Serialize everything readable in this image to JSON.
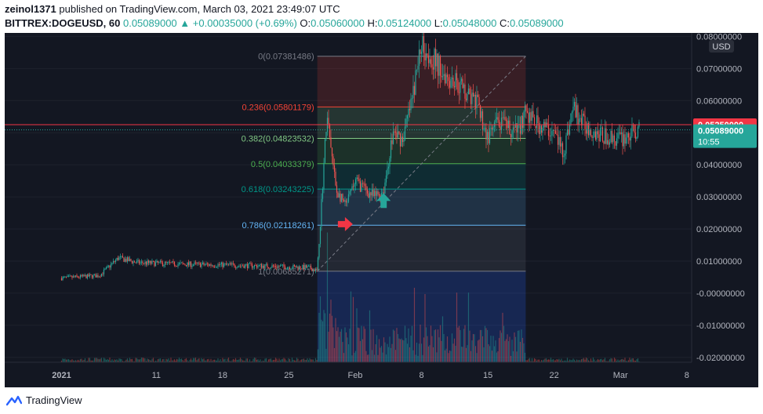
{
  "header": {
    "author": "zeinol1371",
    "published_text": "published on TradingView.com, March 03, 2021 23:49:07 UTC",
    "symbol": "BITTREX:DOGEUSD, 60",
    "last_price": "0.05089000",
    "change": "+0.00035000 (+0.69%)",
    "o_label": "O:",
    "o_value": "0.05060000",
    "h_label": "H:",
    "h_value": "0.05124000",
    "l_label": "L:",
    "l_value": "0.05048000",
    "c_label": "C:",
    "c_value": "0.05089000"
  },
  "colors": {
    "background": "#131722",
    "up": "#26a69a",
    "down": "#ef5350",
    "fib_0": "#787b86",
    "fib_0236": "#f44336",
    "fib_0382": "#81c784",
    "fib_05": "#4caf50",
    "fib_0618": "#009688",
    "fib_0786": "#64b5f6",
    "fib_1": "#787b86",
    "price_line": "#f23645",
    "current_label": "#26a69a"
  },
  "chart_data": {
    "type": "candlestick",
    "title": "",
    "xlabel": "",
    "ylabel": "",
    "ylim": [
      -0.021,
      0.081
    ],
    "y_axis_unit": "USD",
    "y_ticks": [
      "0.08000000",
      "0.07000000",
      "0.06000000",
      "0.05000000",
      "0.04000000",
      "0.03000000",
      "0.02000000",
      "0.01000000",
      "-0.00000000",
      "-0.01000000",
      "-0.02000000"
    ],
    "x_ticks": [
      "2021",
      "11",
      "18",
      "25",
      "Feb",
      "8",
      "15",
      "22",
      "Mar",
      "8"
    ],
    "price_path": [
      {
        "x": "2021-01-01",
        "y": 0.0047
      },
      {
        "x": "2021-01-05",
        "y": 0.0055
      },
      {
        "x": "2021-01-07",
        "y": 0.011
      },
      {
        "x": "2021-01-09",
        "y": 0.0095
      },
      {
        "x": "2021-01-14",
        "y": 0.009
      },
      {
        "x": "2021-01-18",
        "y": 0.0088
      },
      {
        "x": "2021-01-22",
        "y": 0.0085
      },
      {
        "x": "2021-01-27",
        "y": 0.008
      },
      {
        "x": "2021-01-28",
        "y": 0.007
      },
      {
        "x": "2021-01-29",
        "y": 0.055
      },
      {
        "x": "2021-01-30",
        "y": 0.032
      },
      {
        "x": "2021-01-31",
        "y": 0.027
      },
      {
        "x": "2021-02-01",
        "y": 0.035
      },
      {
        "x": "2021-02-03",
        "y": 0.03
      },
      {
        "x": "2021-02-04",
        "y": 0.032
      },
      {
        "x": "2021-02-05",
        "y": 0.05
      },
      {
        "x": "2021-02-06",
        "y": 0.048
      },
      {
        "x": "2021-02-07",
        "y": 0.06
      },
      {
        "x": "2021-02-08",
        "y": 0.078
      },
      {
        "x": "2021-02-09",
        "y": 0.074
      },
      {
        "x": "2021-02-10",
        "y": 0.07
      },
      {
        "x": "2021-02-12",
        "y": 0.065
      },
      {
        "x": "2021-02-14",
        "y": 0.058
      },
      {
        "x": "2021-02-15",
        "y": 0.048
      },
      {
        "x": "2021-02-16",
        "y": 0.053
      },
      {
        "x": "2021-02-18",
        "y": 0.05
      },
      {
        "x": "2021-02-19",
        "y": 0.056
      },
      {
        "x": "2021-02-20",
        "y": 0.053
      },
      {
        "x": "2021-02-22",
        "y": 0.05
      },
      {
        "x": "2021-02-23",
        "y": 0.044
      },
      {
        "x": "2021-02-24",
        "y": 0.058
      },
      {
        "x": "2021-02-25",
        "y": 0.053
      },
      {
        "x": "2021-02-27",
        "y": 0.049
      },
      {
        "x": "2021-03-01",
        "y": 0.048
      },
      {
        "x": "2021-03-03",
        "y": 0.0509
      }
    ],
    "fibonacci": {
      "start": "2021-01-28",
      "end": "2021-02-19",
      "levels": [
        {
          "label": "0(0.07381486)",
          "ratio": 0,
          "price": 0.07381486
        },
        {
          "label": "0.236(0.05801179)",
          "ratio": 0.236,
          "price": 0.05801179
        },
        {
          "label": "0.382(0.04823532)",
          "ratio": 0.382,
          "price": 0.04823532
        },
        {
          "label": "0.5(0.04033379)",
          "ratio": 0.5,
          "price": 0.04033379
        },
        {
          "label": "0.618(0.03243225)",
          "ratio": 0.618,
          "price": 0.03243225
        },
        {
          "label": "0.786(0.02118261)",
          "ratio": 0.786,
          "price": 0.02118261
        },
        {
          "label": "1(0.00685271)",
          "ratio": 1,
          "price": 0.00685271
        }
      ]
    },
    "horizontal_line": {
      "price": 0.0525,
      "label": "0.05250000"
    },
    "current_price": {
      "price": 0.05089,
      "label": "0.05089000",
      "countdown": "10:55"
    },
    "arrows": [
      {
        "type": "right",
        "x": "2021-01-31",
        "y": 0.0215,
        "color": "#f23645"
      },
      {
        "type": "up",
        "x": "2021-02-04",
        "y": 0.029,
        "color": "#26a69a"
      }
    ]
  },
  "footer": {
    "brand": "TradingView"
  }
}
